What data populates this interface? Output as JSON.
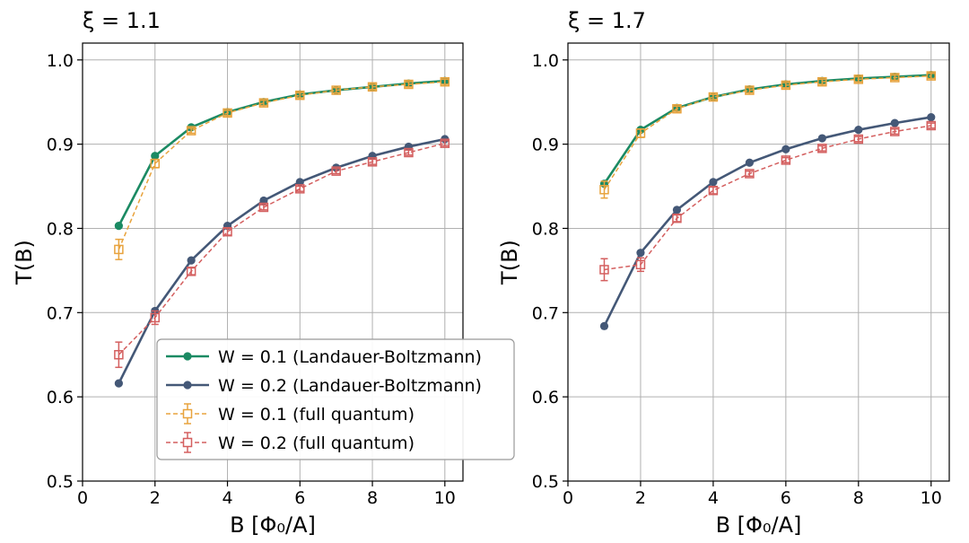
{
  "colors": {
    "wlb01": "#1b8a63",
    "wlb02": "#445877",
    "wfq01": "#e8a33d",
    "wfq02": "#d45f5f",
    "grid": "#b0b0b0",
    "legend_border": "#999999"
  },
  "chart_data": [
    {
      "type": "line",
      "title": "ξ = 1.1",
      "xlabel": "B [Φ₀/A]",
      "ylabel": "T(B)",
      "xlim": [
        0,
        10.5
      ],
      "ylim": [
        0.5,
        1.02
      ],
      "xticks": [
        "0",
        "2",
        "4",
        "6",
        "8",
        "10"
      ],
      "yticks": [
        "0.5",
        "0.6",
        "0.7",
        "0.8",
        "0.9",
        "1.0"
      ],
      "grid": true,
      "legend_position": "lower-right",
      "x": [
        1,
        2,
        3,
        4,
        5,
        6,
        7,
        8,
        9,
        10
      ],
      "series": [
        {
          "name": "W = 0.1 (Landauer-Boltzmann)",
          "style": "lb",
          "color_key": "wlb01",
          "values": [
            0.803,
            0.886,
            0.92,
            0.938,
            0.95,
            0.959,
            0.964,
            0.968,
            0.972,
            0.975
          ]
        },
        {
          "name": "W = 0.2 (Landauer-Boltzmann)",
          "style": "lb",
          "color_key": "wlb02",
          "values": [
            0.616,
            0.702,
            0.762,
            0.803,
            0.833,
            0.855,
            0.872,
            0.886,
            0.897,
            0.906
          ]
        },
        {
          "name": "W = 0.1 (full quantum)",
          "style": "fq",
          "color_key": "wfq01",
          "values": [
            0.775,
            0.877,
            0.916,
            0.937,
            0.949,
            0.958,
            0.964,
            0.968,
            0.971,
            0.974
          ],
          "errors": [
            0.012,
            0.005,
            0.003,
            0.003,
            0.003,
            0.003,
            0.003,
            0.003,
            0.003,
            0.003
          ]
        },
        {
          "name": "W = 0.2 (full quantum)",
          "style": "fq",
          "color_key": "wfq02",
          "values": [
            0.65,
            0.694,
            0.749,
            0.796,
            0.825,
            0.847,
            0.868,
            0.879,
            0.89,
            0.901
          ],
          "errors": [
            0.015,
            0.008,
            0.004,
            0.004,
            0.003,
            0.003,
            0.003,
            0.003,
            0.003,
            0.003
          ]
        }
      ]
    },
    {
      "type": "line",
      "title": "ξ = 1.7",
      "xlabel": "B [Φ₀/A]",
      "ylabel": "T(B)",
      "xlim": [
        0,
        10.5
      ],
      "ylim": [
        0.5,
        1.02
      ],
      "xticks": [
        "0",
        "2",
        "4",
        "6",
        "8",
        "10"
      ],
      "yticks": [
        "0.5",
        "0.6",
        "0.7",
        "0.8",
        "0.9",
        "1.0"
      ],
      "grid": true,
      "legend_position": "none",
      "x": [
        1,
        2,
        3,
        4,
        5,
        6,
        7,
        8,
        9,
        10
      ],
      "series": [
        {
          "name": "W = 0.1 (Landauer-Boltzmann)",
          "style": "lb",
          "color_key": "wlb01",
          "values": [
            0.853,
            0.917,
            0.943,
            0.956,
            0.965,
            0.971,
            0.975,
            0.978,
            0.98,
            0.982
          ]
        },
        {
          "name": "W = 0.2 (Landauer-Boltzmann)",
          "style": "lb",
          "color_key": "wlb02",
          "values": [
            0.684,
            0.771,
            0.822,
            0.855,
            0.878,
            0.894,
            0.907,
            0.917,
            0.925,
            0.932
          ]
        },
        {
          "name": "W = 0.1 (full quantum)",
          "style": "fq",
          "color_key": "wfq01",
          "values": [
            0.846,
            0.913,
            0.942,
            0.956,
            0.964,
            0.97,
            0.974,
            0.977,
            0.979,
            0.981
          ],
          "errors": [
            0.01,
            0.005,
            0.003,
            0.003,
            0.003,
            0.003,
            0.003,
            0.003,
            0.003,
            0.003
          ]
        },
        {
          "name": "W = 0.2 (full quantum)",
          "style": "fq",
          "color_key": "wfq02",
          "values": [
            0.751,
            0.757,
            0.812,
            0.845,
            0.865,
            0.881,
            0.895,
            0.906,
            0.915,
            0.922
          ],
          "errors": [
            0.013,
            0.008,
            0.004,
            0.004,
            0.003,
            0.003,
            0.003,
            0.003,
            0.003,
            0.003
          ]
        }
      ]
    }
  ],
  "legend": {
    "items": [
      {
        "label": "W = 0.1 (Landauer-Boltzmann)",
        "style": "lb",
        "color_key": "wlb01"
      },
      {
        "label": "W = 0.2 (Landauer-Boltzmann)",
        "style": "lb",
        "color_key": "wlb02"
      },
      {
        "label": "W = 0.1 (full quantum)",
        "style": "fq",
        "color_key": "wfq01"
      },
      {
        "label": "W = 0.2 (full quantum)",
        "style": "fq",
        "color_key": "wfq02"
      }
    ]
  }
}
